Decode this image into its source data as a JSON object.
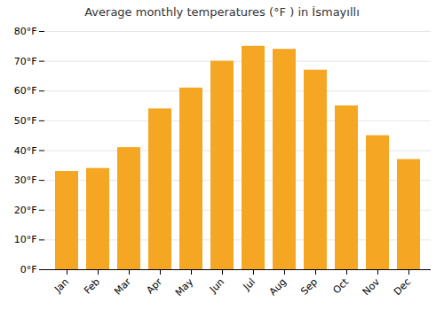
{
  "chart_data": {
    "type": "bar",
    "title": "Average monthly temperatures (°F ) in İsmayıllı",
    "categories": [
      "Jan",
      "Feb",
      "Mar",
      "Apr",
      "May",
      "Jun",
      "Jul",
      "Aug",
      "Sep",
      "Oct",
      "Nov",
      "Dec"
    ],
    "values": [
      33,
      34,
      41,
      54,
      61,
      70,
      75,
      74,
      67,
      55,
      45,
      37
    ],
    "color": "#F5A623",
    "ylim": [
      0,
      80
    ],
    "yticks": [
      {
        "value": 0,
        "label": "0°F"
      },
      {
        "value": 10,
        "label": "10°F"
      },
      {
        "value": 20,
        "label": "20°F"
      },
      {
        "value": 30,
        "label": "30°F"
      },
      {
        "value": 40,
        "label": "40°F"
      },
      {
        "value": 50,
        "label": "50°F"
      },
      {
        "value": 60,
        "label": "60°F"
      },
      {
        "value": 70,
        "label": "70°F"
      },
      {
        "value": 80,
        "label": "80°F"
      }
    ],
    "grid": true
  }
}
